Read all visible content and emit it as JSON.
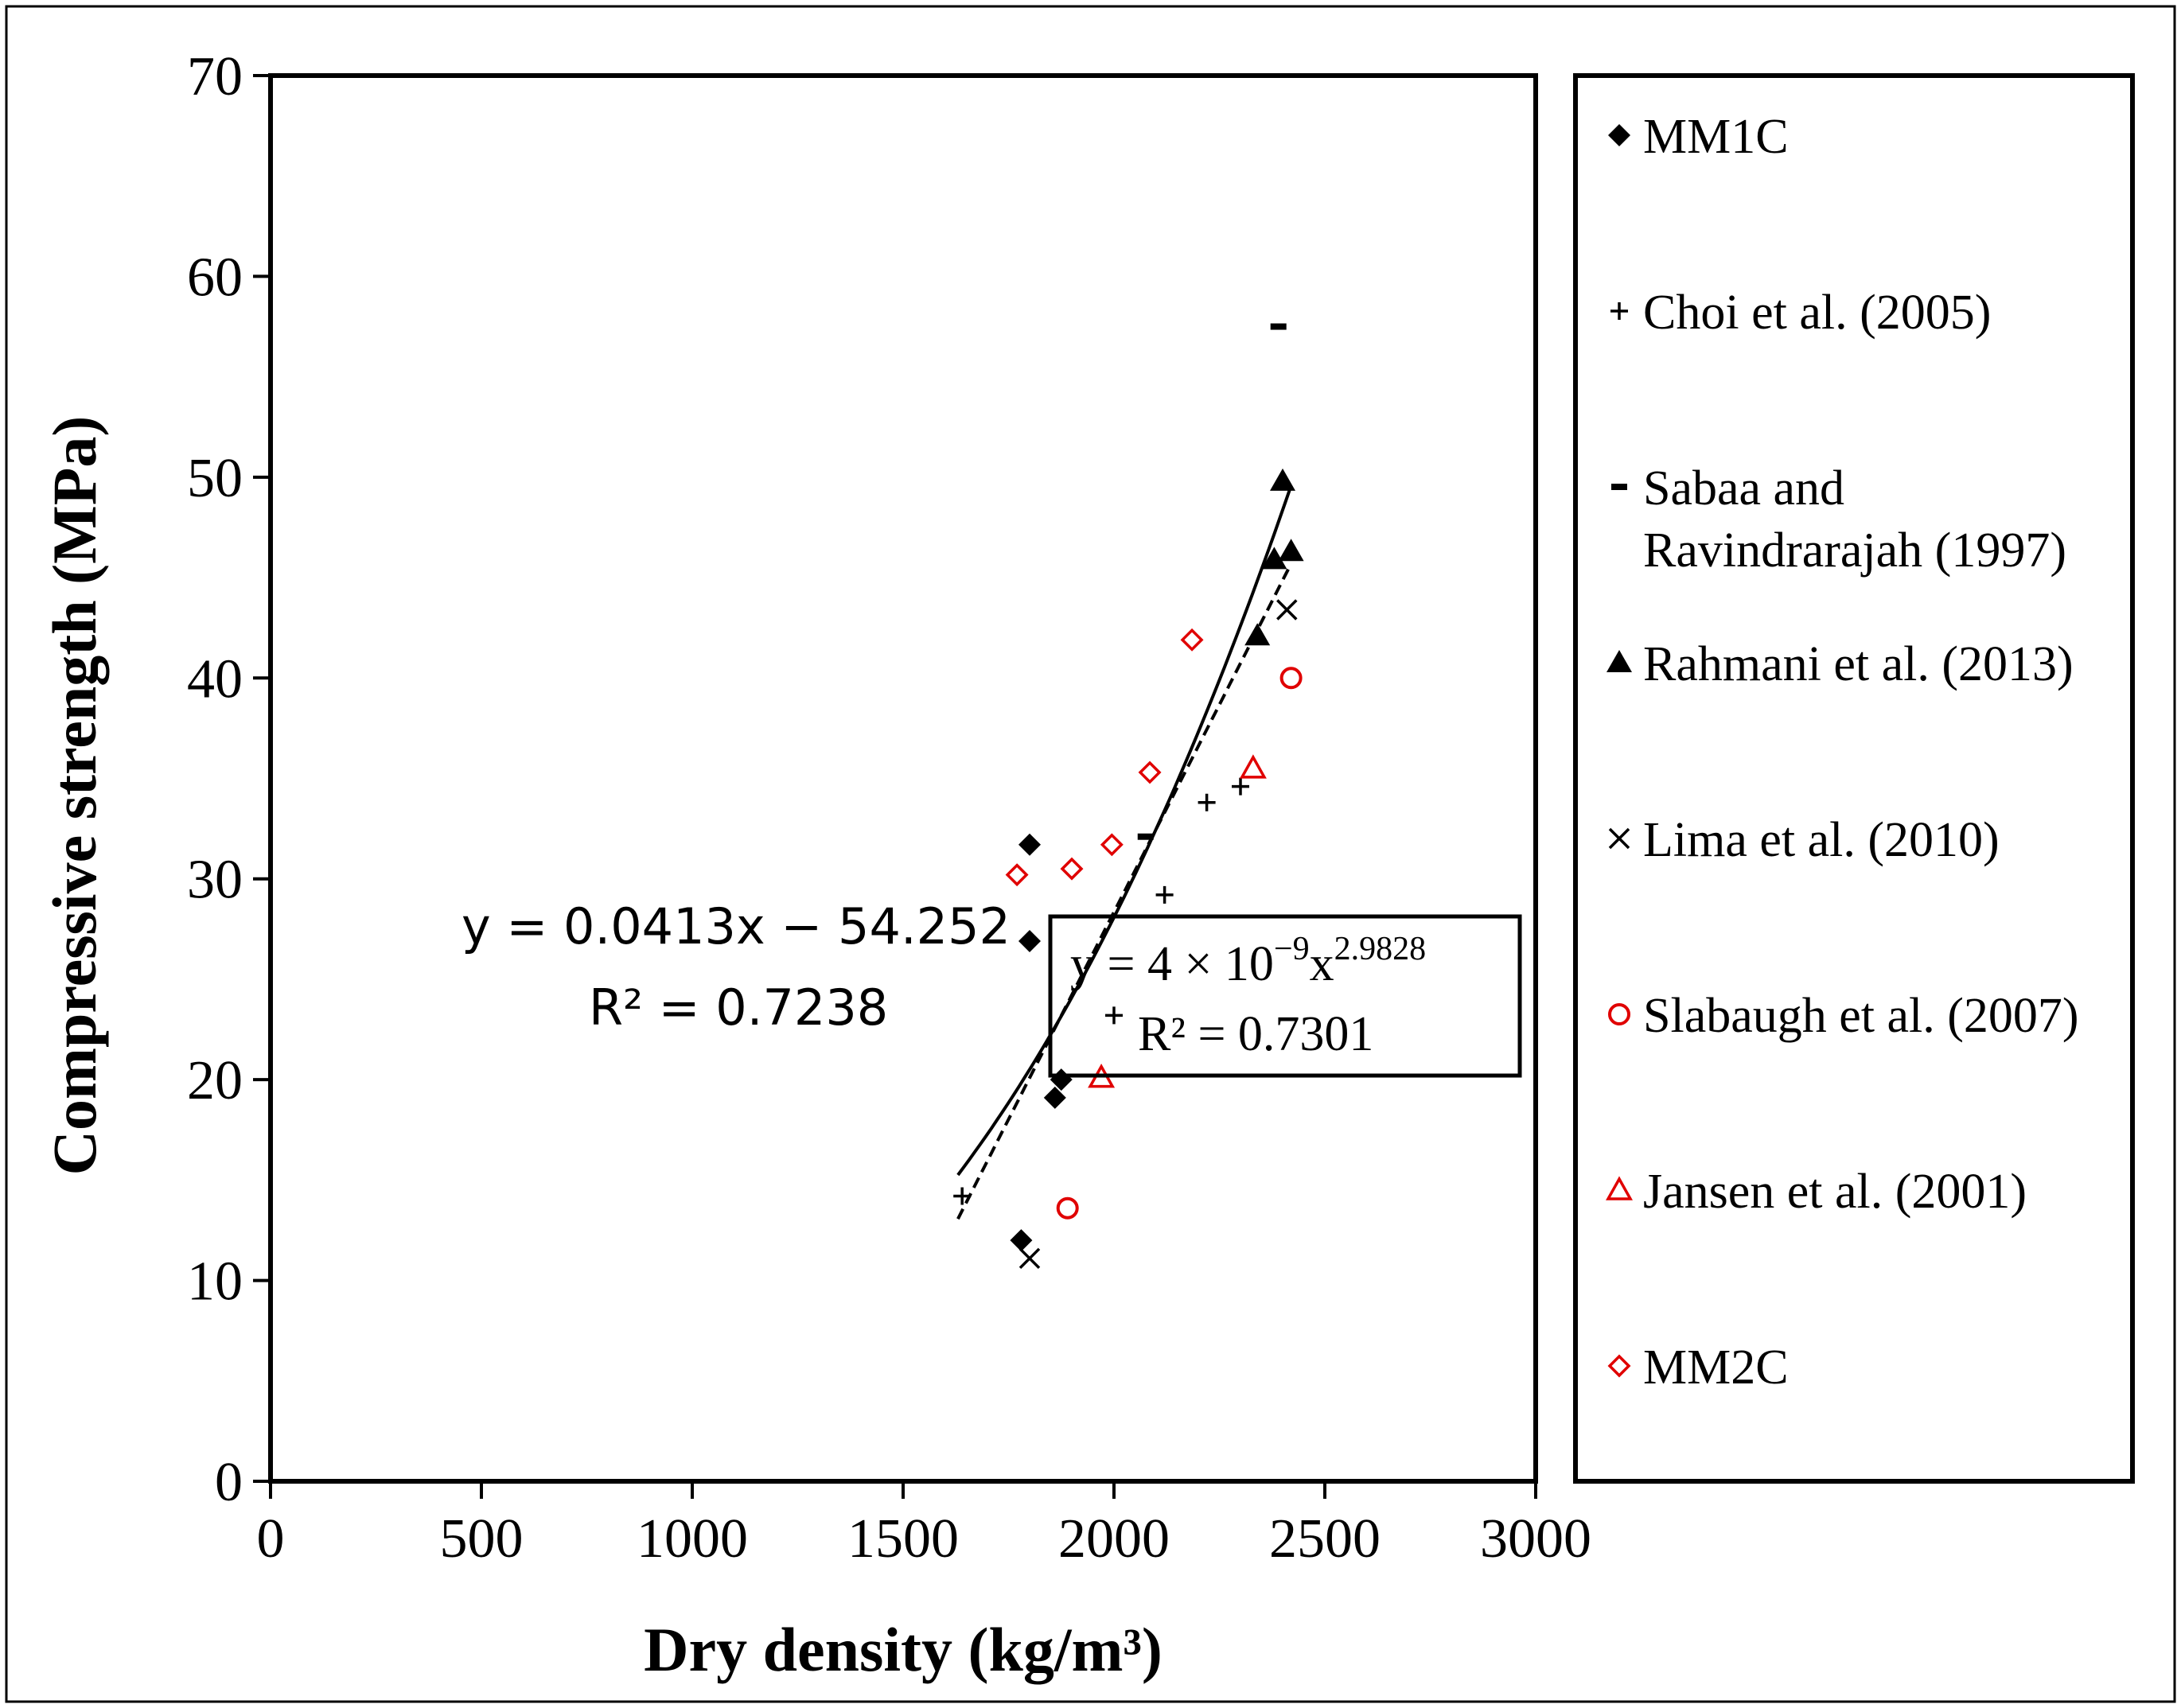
{
  "chart_data": {
    "type": "scatter",
    "xlabel": "Dry density (kg/m³)",
    "ylabel": "Compressive strength (MPa)",
    "xlim": [
      0,
      3000
    ],
    "ylim": [
      0,
      70
    ],
    "xticks": [
      "0",
      "500",
      "1000",
      "1500",
      "2000",
      "2500",
      "3000"
    ],
    "yticks": [
      "0",
      "10",
      "20",
      "30",
      "40",
      "50",
      "60",
      "70"
    ],
    "legend_position": "right",
    "series": [
      {
        "name": "MM1C",
        "marker": "diamond-filled",
        "color": "#000000",
        "points": [
          [
            1800,
            31.7
          ],
          [
            1800,
            26.9
          ],
          [
            1875,
            20.0
          ],
          [
            1860,
            19.1
          ],
          [
            1780,
            12.0
          ]
        ]
      },
      {
        "name": "Choi et al. (2005)",
        "marker": "plus",
        "color": "#000000",
        "points": [
          [
            2220,
            33.8
          ],
          [
            2300,
            34.6
          ],
          [
            2120,
            29.2
          ],
          [
            2000,
            23.2
          ],
          [
            1640,
            14.2
          ]
        ]
      },
      {
        "name": "Sabaa and Ravindrarajah (1997)",
        "marker": "dash",
        "color": "#000000",
        "points": [
          [
            2390,
            57.5
          ],
          [
            2075,
            32.1
          ]
        ]
      },
      {
        "name": "Rahmani et al. (2013)",
        "marker": "triangle-filled",
        "color": "#000000",
        "points": [
          [
            2400,
            49.8
          ],
          [
            2380,
            45.9
          ],
          [
            2420,
            46.3
          ],
          [
            2340,
            42.1
          ]
        ]
      },
      {
        "name": "Lima et al. (2010)",
        "marker": "x",
        "color": "#000000",
        "points": [
          [
            2410,
            43.4
          ],
          [
            1800,
            11.1
          ]
        ]
      },
      {
        "name": "Slabaugh et al. (2007)",
        "marker": "circle-open",
        "color": "#e00000",
        "points": [
          [
            2420,
            40.0
          ],
          [
            1890,
            13.6
          ]
        ]
      },
      {
        "name": "Jansen et al. (2001)",
        "marker": "triangle-open",
        "color": "#e00000",
        "points": [
          [
            2330,
            35.5
          ],
          [
            1970,
            20.1
          ]
        ]
      },
      {
        "name": "MM2C",
        "marker": "diamond-open",
        "color": "#e00000",
        "points": [
          [
            2185,
            41.9
          ],
          [
            2085,
            35.3
          ],
          [
            1995,
            31.7
          ],
          [
            1900,
            30.5
          ],
          [
            1770,
            30.2
          ]
        ]
      }
    ],
    "trendlines": [
      {
        "type": "linear",
        "style": "dashed",
        "slope": 0.0413,
        "intercept": -54.252,
        "x_range": [
          1630,
          2420
        ]
      },
      {
        "type": "power",
        "style": "solid",
        "coefficient": 4e-09,
        "exponent": 2.9828,
        "x_range": [
          1630,
          2420
        ]
      }
    ],
    "annotations": {
      "linear_equation": "y = 0.0413x − 54.252",
      "linear_r2": "R² = 0.7238",
      "power_equation_prefix": "y = 4 × 10",
      "power_equation_exp1": "−9",
      "power_equation_mid": "x",
      "power_equation_exp2": "2.9828",
      "power_r2": "R² = 0.7301"
    }
  }
}
